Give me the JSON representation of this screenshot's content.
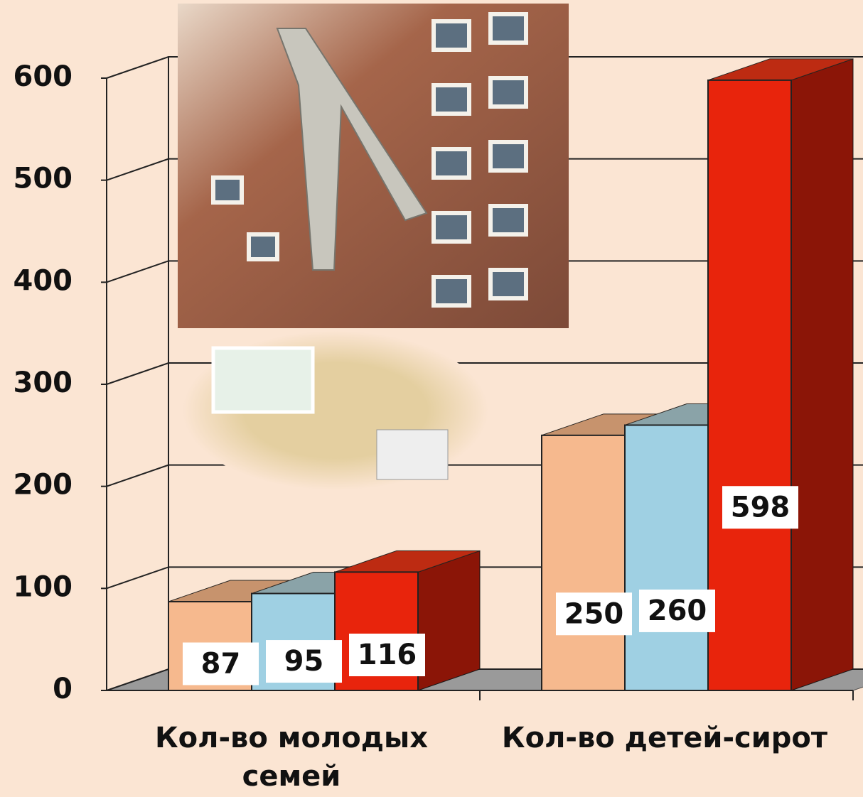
{
  "chart_data": {
    "type": "bar3d",
    "categories": [
      "Кол-во молодых семей",
      "Кол-во детей-сирот"
    ],
    "series": [
      {
        "color": "#f6b98e",
        "values": [
          87,
          250
        ]
      },
      {
        "color": "#9fd0e3",
        "values": [
          95,
          260
        ]
      },
      {
        "color": "#e8240c",
        "values": [
          116,
          598
        ]
      }
    ],
    "ylim": [
      0,
      600
    ],
    "yticks": [
      0,
      100,
      200,
      300,
      400,
      500,
      600
    ],
    "grid": true
  }
}
